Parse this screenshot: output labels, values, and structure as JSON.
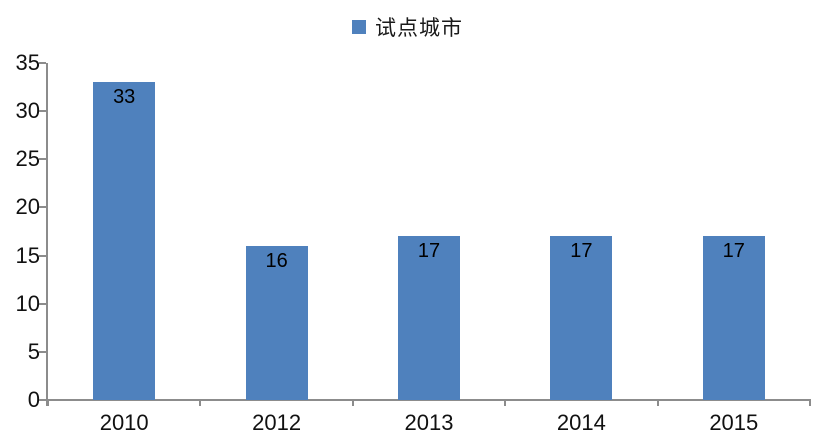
{
  "chart": {
    "legend": {
      "label": "试点城市"
    },
    "colors": {
      "bar": "#4f81bd",
      "axis": "#8c8c8c",
      "label_text": "#000000",
      "axis_text": "#111111"
    }
  },
  "chart_data": {
    "type": "bar",
    "categories": [
      "2010",
      "2012",
      "2013",
      "2014",
      "2015"
    ],
    "values": [
      33,
      16,
      17,
      17,
      17
    ],
    "series_name": "试点城市",
    "title": "",
    "xlabel": "",
    "ylabel": "",
    "ylim": [
      0,
      35
    ],
    "ytick_step": 5,
    "grid": false,
    "legend_position": "top-center",
    "data_labels": "inside-top"
  }
}
